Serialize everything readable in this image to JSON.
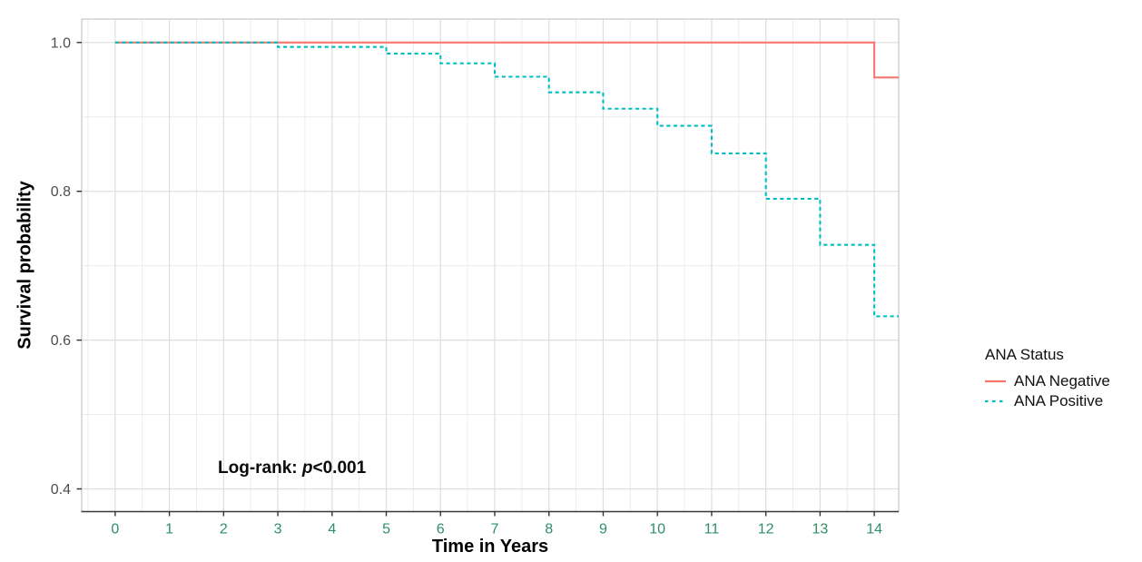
{
  "chart_data": {
    "type": "line",
    "subtype": "kaplan-meier-survival-step",
    "title": "",
    "xlabel": "Time in Years",
    "ylabel": "Survival probability",
    "x_domain": [
      -0.617,
      14.45
    ],
    "y_domain": [
      0.3695,
      1.0315
    ],
    "x_ticks": [
      0,
      1,
      2,
      3,
      4,
      5,
      6,
      7,
      8,
      9,
      10,
      11,
      12,
      13,
      14
    ],
    "x_minor_ticks": [
      -0.5,
      0.5,
      1.5,
      2.5,
      3.5,
      4.5,
      5.5,
      6.5,
      7.5,
      8.5,
      9.5,
      10.5,
      11.5,
      12.5,
      13.5
    ],
    "y_ticks": [
      1.0,
      0.8,
      0.6,
      0.4
    ],
    "y_tick_labels": [
      "1.0",
      "0.8",
      "0.6",
      "0.4"
    ],
    "y_minor_ticks": [
      0.9,
      0.7,
      0.5
    ],
    "grid": true,
    "legend_position": "right",
    "annotation": "Log-rank: p<0.001",
    "series": [
      {
        "id": "ana-negative",
        "name": "ANA Negative",
        "color": "#F8766D",
        "linetype": "solid",
        "t": [
          0,
          14,
          14.45
        ],
        "s": [
          1.0,
          0.953,
          0.953
        ]
      },
      {
        "id": "ana-positive",
        "name": "ANA Positive",
        "color": "#00BFC4",
        "linetype": "dashed",
        "t": [
          0,
          3,
          5,
          6,
          7,
          8,
          9,
          10,
          11,
          12,
          13,
          14,
          14.45
        ],
        "s": [
          1.0,
          0.994,
          0.985,
          0.972,
          0.954,
          0.933,
          0.911,
          0.888,
          0.851,
          0.79,
          0.728,
          0.632,
          0.632
        ]
      }
    ],
    "colors": {
      "grid_major": "#dedede",
      "grid_minor": "#ececec",
      "panel_border": "#c8c8c8",
      "axis_line": "#3a3a3a",
      "tick_mark": "#333333",
      "x_tick_text": "#2e8f68",
      "y_tick_text": "#4d4d4d",
      "ana_negative": "#F8766D",
      "ana_positive": "#00BFC4"
    }
  },
  "axes": {
    "x_title": "Time in Years",
    "y_title": "Survival probability"
  },
  "legend": {
    "title": "ANA Status",
    "entries": [
      {
        "id": "ana-negative",
        "label": "ANA Negative",
        "color": "#F8766D",
        "linetype": "solid"
      },
      {
        "id": "ana-positive",
        "label": "ANA Positive",
        "color": "#00BFC4",
        "linetype": "dashed"
      }
    ]
  },
  "annotation": {
    "prefix": "Log-rank: ",
    "p_symbol": "p",
    "suffix": "<0.001"
  }
}
